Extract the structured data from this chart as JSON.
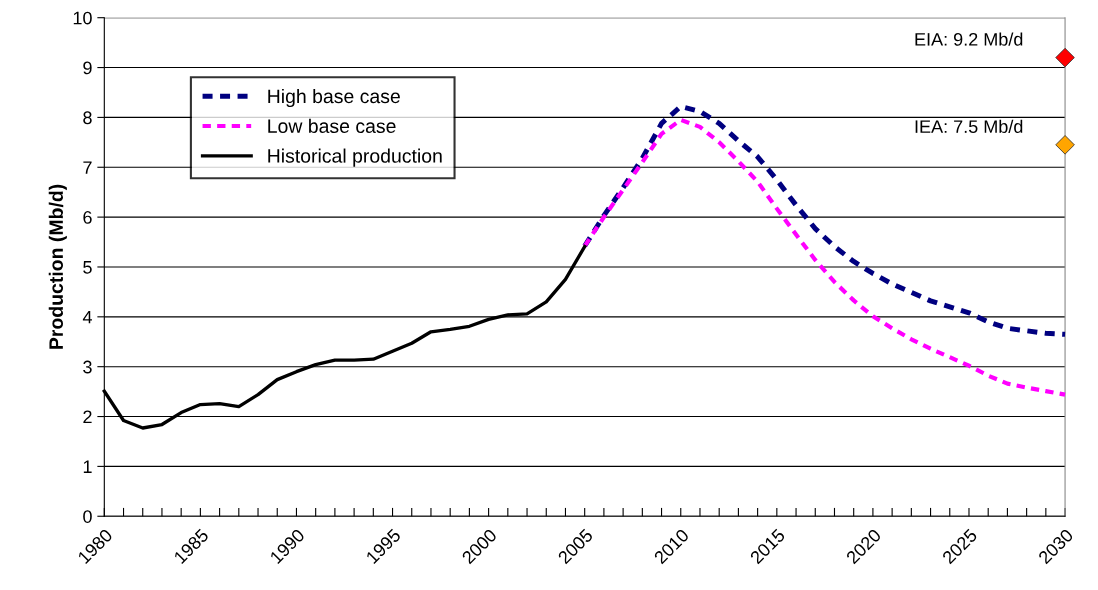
{
  "chart_data": {
    "type": "line",
    "ylabel": "Production (Mb/d)",
    "xlim": [
      1980,
      2030
    ],
    "ylim": [
      0,
      10
    ],
    "yticks": [
      0,
      1,
      2,
      3,
      4,
      5,
      6,
      7,
      8,
      9,
      10
    ],
    "xticks": [
      1980,
      {
        "value": 1981,
        "label": null
      },
      {
        "value": 1982,
        "label": null
      },
      {
        "value": 1983,
        "label": null
      },
      {
        "value": 1984,
        "label": null
      },
      1985,
      {
        "value": 1986,
        "label": null
      },
      {
        "value": 1987,
        "label": null
      },
      {
        "value": 1988,
        "label": null
      },
      {
        "value": 1989,
        "label": null
      },
      1990,
      {
        "value": 1991,
        "label": null
      },
      {
        "value": 1992,
        "label": null
      },
      {
        "value": 1993,
        "label": null
      },
      {
        "value": 1994,
        "label": null
      },
      1995,
      {
        "value": 1996,
        "label": null
      },
      {
        "value": 1997,
        "label": null
      },
      {
        "value": 1998,
        "label": null
      },
      {
        "value": 1999,
        "label": null
      },
      2000,
      {
        "value": 2001,
        "label": null
      },
      {
        "value": 2002,
        "label": null
      },
      {
        "value": 2003,
        "label": null
      },
      {
        "value": 2004,
        "label": null
      },
      2005,
      {
        "value": 2006,
        "label": null
      },
      {
        "value": 2007,
        "label": null
      },
      {
        "value": 2008,
        "label": null
      },
      {
        "value": 2009,
        "label": null
      },
      2010,
      {
        "value": 2011,
        "label": null
      },
      {
        "value": 2012,
        "label": null
      },
      {
        "value": 2013,
        "label": null
      },
      {
        "value": 2014,
        "label": null
      },
      2015,
      {
        "value": 2016,
        "label": null
      },
      {
        "value": 2017,
        "label": null
      },
      {
        "value": 2018,
        "label": null
      },
      {
        "value": 2019,
        "label": null
      },
      2020,
      {
        "value": 2021,
        "label": null
      },
      {
        "value": 2022,
        "label": null
      },
      {
        "value": 2023,
        "label": null
      },
      {
        "value": 2024,
        "label": null
      },
      2025,
      {
        "value": 2026,
        "label": null
      },
      {
        "value": 2027,
        "label": null
      },
      {
        "value": 2028,
        "label": null
      },
      {
        "value": 2029,
        "label": null
      },
      2030
    ],
    "grid": "y",
    "legend": "top left",
    "series": [
      {
        "name": "High base case",
        "color": "#000080",
        "line_style": "dashed",
        "x": [
          2005,
          2006,
          2007,
          2008,
          2009,
          2010,
          2011,
          2012,
          2013,
          2014,
          2015,
          2016,
          2017,
          2018,
          2019,
          2020,
          2021,
          2022,
          2023,
          2024,
          2025,
          2026,
          2027,
          2028,
          2029,
          2030
        ],
        "values": [
          5.42,
          6.03,
          6.59,
          7.18,
          7.88,
          8.22,
          8.12,
          7.88,
          7.53,
          7.21,
          6.75,
          6.24,
          5.77,
          5.41,
          5.11,
          4.87,
          4.66,
          4.49,
          4.32,
          4.2,
          4.08,
          3.9,
          3.77,
          3.72,
          3.67,
          3.65
        ]
      },
      {
        "name": "Low base case",
        "color": "#ff00ff",
        "line_style": "dashed",
        "x": [
          2005,
          2006,
          2007,
          2008,
          2009,
          2010,
          2011,
          2012,
          2013,
          2014,
          2015,
          2016,
          2017,
          2018,
          2019,
          2020,
          2021,
          2022,
          2023,
          2024,
          2025,
          2026,
          2027,
          2028,
          2029,
          2030
        ],
        "values": [
          5.42,
          6.0,
          6.55,
          7.1,
          7.67,
          7.95,
          7.81,
          7.5,
          7.12,
          6.71,
          6.17,
          5.65,
          5.14,
          4.7,
          4.33,
          4.01,
          3.77,
          3.55,
          3.36,
          3.19,
          3.02,
          2.82,
          2.66,
          2.58,
          2.51,
          2.44
        ]
      },
      {
        "name": "Historical production",
        "color": "#000000",
        "line_style": "solid",
        "x": [
          1980,
          1981,
          1982,
          1983,
          1984,
          1985,
          1986,
          1987,
          1988,
          1989,
          1990,
          1991,
          1992,
          1993,
          1994,
          1995,
          1996,
          1997,
          1998,
          1999,
          2000,
          2001,
          2002,
          2003,
          2004,
          2005
        ],
        "values": [
          2.51,
          1.92,
          1.77,
          1.84,
          2.08,
          2.24,
          2.26,
          2.2,
          2.44,
          2.74,
          2.9,
          3.04,
          3.13,
          3.13,
          3.15,
          3.31,
          3.47,
          3.7,
          3.75,
          3.81,
          3.95,
          4.04,
          4.06,
          4.3,
          4.75,
          5.41
        ]
      },
      {
        "type": "scatter",
        "marker": "diamond",
        "color": "#ff0000",
        "x": [
          2030
        ],
        "values": [
          9.2
        ]
      },
      {
        "type": "scatter",
        "marker": "diamond",
        "color": "#ffa500",
        "x": [
          2030
        ],
        "values": [
          7.45
        ]
      }
    ],
    "annotations": [
      {
        "text": "EIA: 9.2 Mb/d",
        "x": 2030,
        "y": 9.2
      },
      {
        "text": "IEA: 7.5 Mb/d",
        "x": 2030,
        "y": 7.45
      }
    ]
  }
}
